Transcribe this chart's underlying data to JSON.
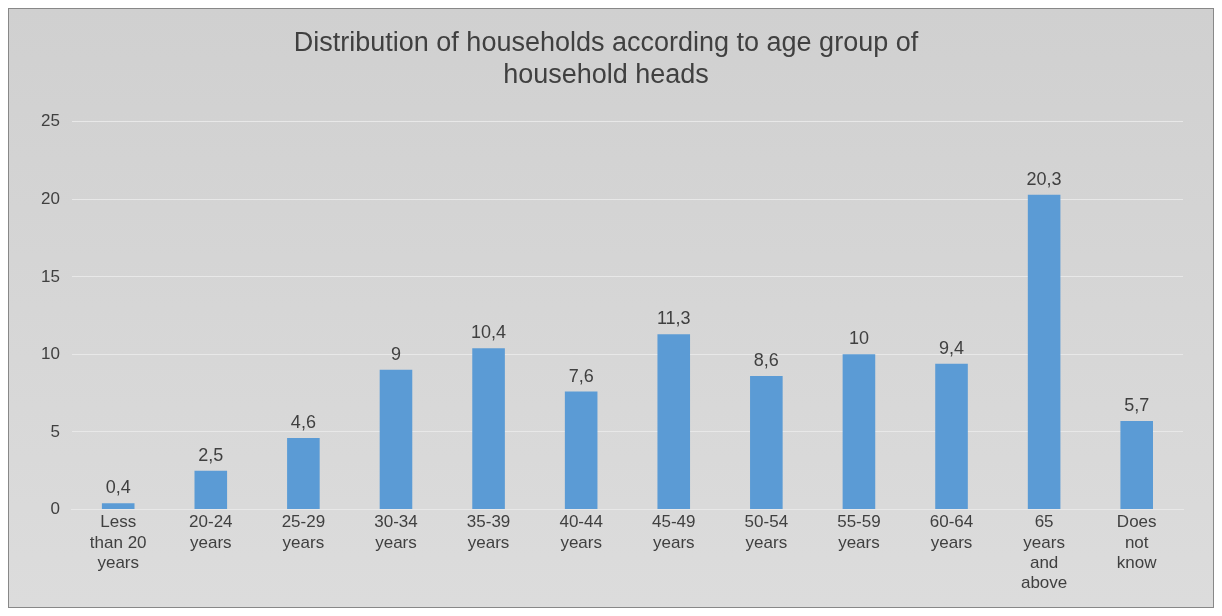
{
  "chart_data": {
    "type": "bar",
    "title": "Distribution of households according to age group of household heads",
    "categories": [
      "Less than 20 years",
      "20-24 years",
      "25-29 years",
      "30-34 years",
      "35-39 years",
      "40-44 years",
      "45-49 years",
      "50-54 years",
      "55-59 years",
      "60-64 years",
      "65 years and above",
      "Does not know"
    ],
    "values": [
      0.4,
      2.5,
      4.6,
      9,
      10.4,
      7.6,
      11.3,
      8.6,
      10,
      9.4,
      20.3,
      5.7
    ],
    "value_labels": [
      "0,4",
      "2,5",
      "4,6",
      "9",
      "10,4",
      "7,6",
      "11,3",
      "8,6",
      "10",
      "9,4",
      "20,3",
      "5,7"
    ],
    "color": "#5b9bd5",
    "ylim": [
      0,
      25
    ],
    "yticks": [
      0,
      5,
      10,
      15,
      20,
      25
    ],
    "grid": "y",
    "legend": false
  }
}
